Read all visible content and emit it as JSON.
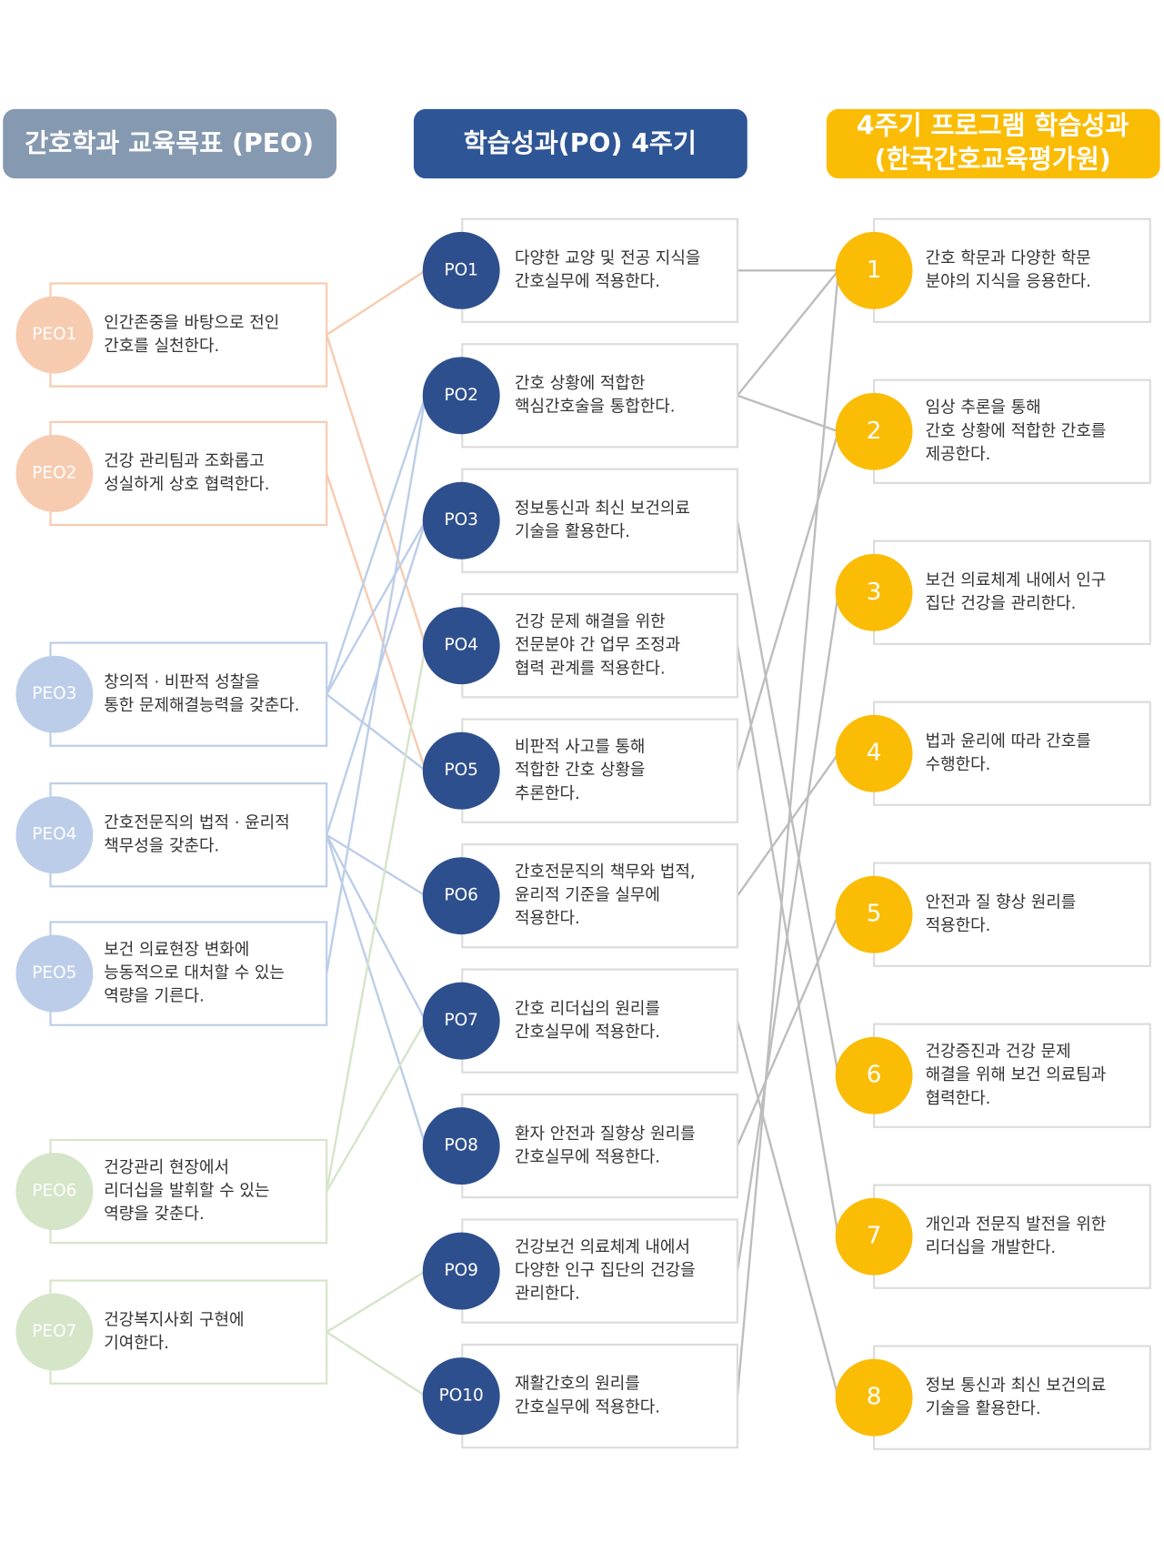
{
  "headers": {
    "peo": "간호학과 교육목표 (PEO)",
    "po": "학습성과(PO) 4주기",
    "program": [
      "4주기 프로그램 학습성과",
      "(한국간호교육평가원)"
    ]
  },
  "peo": [
    {
      "id": "PEO1",
      "lines": [
        "인간존중을 바탕으로 전인",
        "간호를 실천한다."
      ]
    },
    {
      "id": "PEO2",
      "lines": [
        "건강 관리팀과 조화롭고",
        "성실하게 상호 협력한다."
      ]
    },
    {
      "id": "PEO3",
      "lines": [
        "창의적 · 비판적 성찰을",
        "통한 문제해결능력을 갖춘다."
      ]
    },
    {
      "id": "PEO4",
      "lines": [
        "간호전문직의 법적 · 윤리적",
        "책무성을 갖춘다."
      ]
    },
    {
      "id": "PEO5",
      "lines": [
        "보건 의료현장 변화에",
        "능동적으로 대처할 수 있는",
        "역량을 기른다."
      ]
    },
    {
      "id": "PEO6",
      "lines": [
        "건강관리 현장에서",
        "리더십을 발휘할 수 있는",
        "역량을 갖춘다."
      ]
    },
    {
      "id": "PEO7",
      "lines": [
        "건강복지사회 구현에",
        "기여한다."
      ]
    }
  ],
  "po": [
    {
      "id": "PO1",
      "lines": [
        "다양한 교양 및 전공 지식을",
        "간호실무에 적용한다."
      ]
    },
    {
      "id": "PO2",
      "lines": [
        "간호 상황에 적합한",
        "핵심간호술을 통합한다."
      ]
    },
    {
      "id": "PO3",
      "lines": [
        "정보통신과 최신 보건의료",
        "기술을 활용한다."
      ]
    },
    {
      "id": "PO4",
      "lines": [
        "건강 문제 해결을 위한",
        "전문분야 간 업무 조정과",
        "협력 관계를 적용한다."
      ]
    },
    {
      "id": "PO5",
      "lines": [
        "비판적 사고를 통해",
        "적합한 간호 상황을",
        "추론한다."
      ]
    },
    {
      "id": "PO6",
      "lines": [
        "간호전문직의 책무와 법적,",
        "윤리적 기준을 실무에",
        "적용한다."
      ]
    },
    {
      "id": "PO7",
      "lines": [
        "간호 리더십의 원리를",
        "간호실무에 적용한다."
      ]
    },
    {
      "id": "PO8",
      "lines": [
        "환자 안전과 질향상 원리를",
        "간호실무에 적용한다."
      ]
    },
    {
      "id": "PO9",
      "lines": [
        "건강보건 의료체계 내에서",
        "다양한 인구 집단의 건강을",
        "관리한다."
      ]
    },
    {
      "id": "PO10",
      "lines": [
        "재활간호의 원리를",
        "간호실무에 적용한다."
      ]
    }
  ],
  "program": [
    {
      "id": "1",
      "lines": [
        "간호 학문과 다양한 학문",
        "분야의 지식을 응용한다."
      ]
    },
    {
      "id": "2",
      "lines": [
        "임상 추론을 통해",
        "간호 상황에 적합한 간호를",
        "제공한다."
      ]
    },
    {
      "id": "3",
      "lines": [
        "보건 의료체계 내에서 인구",
        "집단 건강을 관리한다."
      ]
    },
    {
      "id": "4",
      "lines": [
        "법과 윤리에 따라 간호를",
        "수행한다."
      ]
    },
    {
      "id": "5",
      "lines": [
        "안전과 질 향상 원리를",
        "적용한다."
      ]
    },
    {
      "id": "6",
      "lines": [
        "건강증진과 건강 문제",
        "해결을 위해 보건 의료팀과",
        "협력한다."
      ]
    },
    {
      "id": "7",
      "lines": [
        "개인과 전문직 발전을 위한",
        "리더십을 개발한다."
      ]
    },
    {
      "id": "8",
      "lines": [
        "정보 통신과 최신 보건의료",
        "기술을 활용한다."
      ]
    }
  ]
}
